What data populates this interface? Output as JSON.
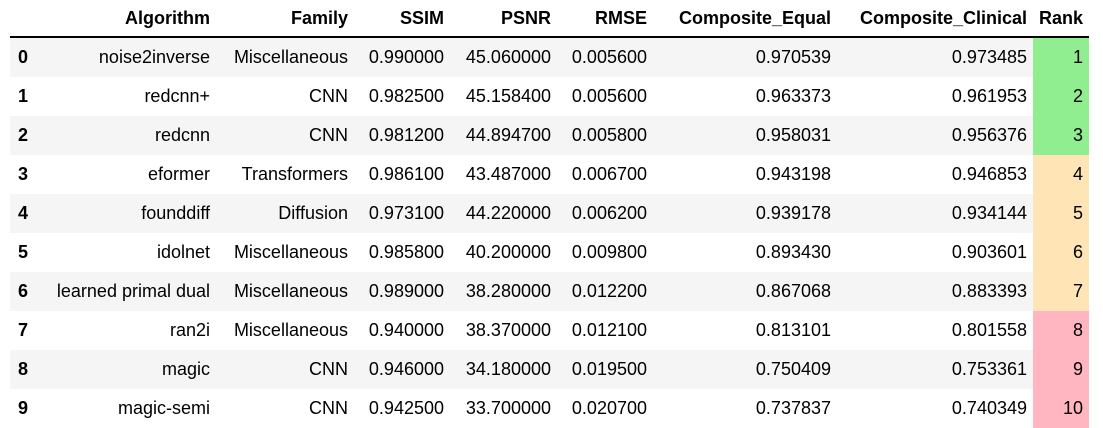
{
  "columns": [
    "",
    "Algorithm",
    "Family",
    "SSIM",
    "PSNR",
    "RMSE",
    "Composite_Equal",
    "Composite_Clinical",
    "Rank"
  ],
  "colors": {
    "rank_top": "#90ee90",
    "rank_mid": "#ffe4b5",
    "rank_low": "#ffb6c1"
  },
  "rows": [
    {
      "index": "0",
      "algorithm": "noise2inverse",
      "family": "Miscellaneous",
      "ssim": "0.990000",
      "psnr": "45.060000",
      "rmse": "0.005600",
      "composite_equal": "0.970539",
      "composite_clinical": "0.973485",
      "rank": "1",
      "tier": "top"
    },
    {
      "index": "1",
      "algorithm": "redcnn+",
      "family": "CNN",
      "ssim": "0.982500",
      "psnr": "45.158400",
      "rmse": "0.005600",
      "composite_equal": "0.963373",
      "composite_clinical": "0.961953",
      "rank": "2",
      "tier": "top"
    },
    {
      "index": "2",
      "algorithm": "redcnn",
      "family": "CNN",
      "ssim": "0.981200",
      "psnr": "44.894700",
      "rmse": "0.005800",
      "composite_equal": "0.958031",
      "composite_clinical": "0.956376",
      "rank": "3",
      "tier": "top"
    },
    {
      "index": "3",
      "algorithm": "eformer",
      "family": "Transformers",
      "ssim": "0.986100",
      "psnr": "43.487000",
      "rmse": "0.006700",
      "composite_equal": "0.943198",
      "composite_clinical": "0.946853",
      "rank": "4",
      "tier": "mid"
    },
    {
      "index": "4",
      "algorithm": "founddiff",
      "family": "Diffusion",
      "ssim": "0.973100",
      "psnr": "44.220000",
      "rmse": "0.006200",
      "composite_equal": "0.939178",
      "composite_clinical": "0.934144",
      "rank": "5",
      "tier": "mid"
    },
    {
      "index": "5",
      "algorithm": "idolnet",
      "family": "Miscellaneous",
      "ssim": "0.985800",
      "psnr": "40.200000",
      "rmse": "0.009800",
      "composite_equal": "0.893430",
      "composite_clinical": "0.903601",
      "rank": "6",
      "tier": "mid"
    },
    {
      "index": "6",
      "algorithm": "learned primal dual",
      "family": "Miscellaneous",
      "ssim": "0.989000",
      "psnr": "38.280000",
      "rmse": "0.012200",
      "composite_equal": "0.867068",
      "composite_clinical": "0.883393",
      "rank": "7",
      "tier": "mid"
    },
    {
      "index": "7",
      "algorithm": "ran2i",
      "family": "Miscellaneous",
      "ssim": "0.940000",
      "psnr": "38.370000",
      "rmse": "0.012100",
      "composite_equal": "0.813101",
      "composite_clinical": "0.801558",
      "rank": "8",
      "tier": "low"
    },
    {
      "index": "8",
      "algorithm": "magic",
      "family": "CNN",
      "ssim": "0.946000",
      "psnr": "34.180000",
      "rmse": "0.019500",
      "composite_equal": "0.750409",
      "composite_clinical": "0.753361",
      "rank": "9",
      "tier": "low"
    },
    {
      "index": "9",
      "algorithm": "magic-semi",
      "family": "CNN",
      "ssim": "0.942500",
      "psnr": "33.700000",
      "rmse": "0.020700",
      "composite_equal": "0.737837",
      "composite_clinical": "0.740349",
      "rank": "10",
      "tier": "low"
    }
  ]
}
